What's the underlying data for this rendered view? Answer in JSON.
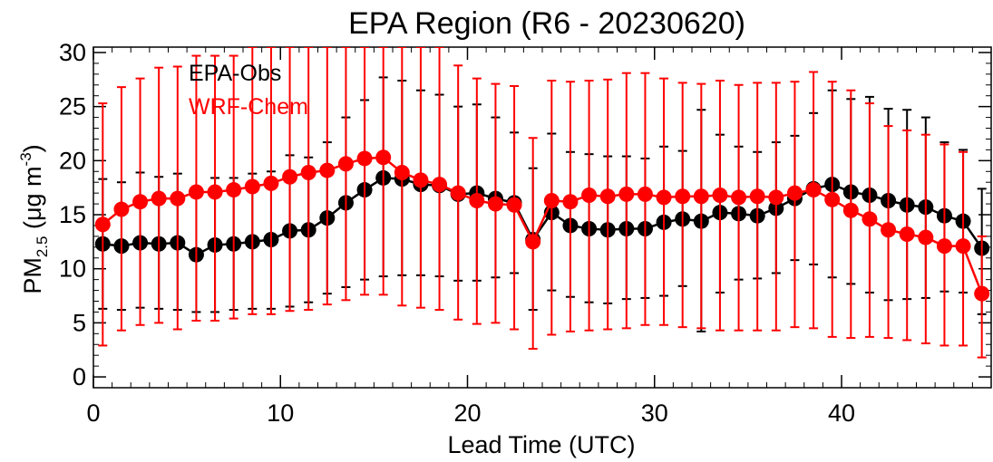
{
  "chart_data": {
    "type": "line",
    "title": "EPA Region (R6 - 20230620)",
    "xlabel": "Lead Time (UTC)",
    "ylabel": {
      "base": "PM",
      "sub": "2.5",
      "unit_pre": " (μg m",
      "unit_sup": "-3",
      "unit_post": ")"
    },
    "xlim": [
      0,
      48
    ],
    "ylim": [
      -1,
      30.5
    ],
    "xticks": [
      0,
      10,
      20,
      30,
      40
    ],
    "yticks": [
      0,
      5,
      10,
      15,
      20,
      25,
      30
    ],
    "legend_position": "top-left",
    "x": [
      0.5,
      1.5,
      2.5,
      3.5,
      4.5,
      5.5,
      6.5,
      7.5,
      8.5,
      9.5,
      10.5,
      11.5,
      12.5,
      13.5,
      14.5,
      15.5,
      16.5,
      17.5,
      18.5,
      19.5,
      20.5,
      21.5,
      22.5,
      23.5,
      24.5,
      25.5,
      26.5,
      27.5,
      28.5,
      29.5,
      30.5,
      31.5,
      32.5,
      33.5,
      34.5,
      35.5,
      36.5,
      37.5,
      38.5,
      39.5,
      40.5,
      41.5,
      42.5,
      43.5,
      44.5,
      45.5,
      46.5,
      47.5
    ],
    "series": [
      {
        "name": "EPA-Obs",
        "color": "#000000",
        "values": [
          12.3,
          12.1,
          12.4,
          12.3,
          12.4,
          11.3,
          12.2,
          12.3,
          12.5,
          12.7,
          13.5,
          13.6,
          14.7,
          16.1,
          17.3,
          18.4,
          18.3,
          17.8,
          17.7,
          16.9,
          17.0,
          16.5,
          16.1,
          12.7,
          15.2,
          14.0,
          13.7,
          13.6,
          13.7,
          13.7,
          14.3,
          14.6,
          14.4,
          15.2,
          15.1,
          14.9,
          15.6,
          16.5,
          17.4,
          17.8,
          17.1,
          16.8,
          16.3,
          15.9,
          15.7,
          14.9,
          14.4,
          11.9
        ],
        "err_low": [
          6.3,
          6.2,
          6.4,
          6.3,
          6.2,
          6.0,
          6.0,
          6.2,
          6.3,
          6.3,
          6.5,
          6.9,
          7.7,
          8.3,
          9.0,
          9.3,
          9.4,
          9.4,
          9.3,
          8.9,
          8.9,
          9.2,
          9.6,
          6.2,
          8.0,
          7.4,
          6.9,
          6.8,
          7.2,
          7.3,
          7.5,
          8.4,
          4.2,
          7.8,
          9.0,
          9.1,
          9.6,
          10.8,
          10.4,
          9.2,
          8.6,
          7.8,
          7.1,
          7.2,
          7.3,
          7.9,
          7.8,
          5.8
        ],
        "err_high": [
          18.3,
          18.0,
          18.9,
          18.5,
          18.8,
          16.6,
          18.4,
          18.4,
          18.8,
          19.0,
          20.5,
          20.3,
          21.7,
          24.0,
          25.6,
          27.7,
          27.4,
          26.5,
          26.1,
          25.0,
          25.2,
          24.0,
          22.6,
          19.3,
          22.5,
          20.8,
          20.6,
          20.4,
          20.4,
          20.2,
          21.3,
          20.9,
          24.7,
          22.4,
          21.3,
          20.8,
          21.7,
          22.3,
          24.4,
          26.5,
          25.7,
          25.9,
          24.8,
          24.7,
          24.0,
          21.7,
          21.0,
          17.4
        ]
      },
      {
        "name": "WRF-Chem",
        "color": "#ff0000",
        "values": [
          14.1,
          15.5,
          16.2,
          16.5,
          16.5,
          17.1,
          17.1,
          17.3,
          17.6,
          17.9,
          18.5,
          18.9,
          19.1,
          19.7,
          20.2,
          20.3,
          18.9,
          18.2,
          17.8,
          17.0,
          16.3,
          16.0,
          15.9,
          12.5,
          16.3,
          16.2,
          16.8,
          16.7,
          16.9,
          16.9,
          16.6,
          16.7,
          16.7,
          16.8,
          16.6,
          16.7,
          16.6,
          17.0,
          17.3,
          16.4,
          15.4,
          14.6,
          13.6,
          13.2,
          12.9,
          12.1,
          12.1,
          7.7
        ],
        "err_low": [
          2.9,
          4.3,
          4.8,
          5.0,
          4.4,
          5.2,
          5.2,
          5.4,
          5.8,
          5.8,
          6.1,
          6.2,
          6.7,
          7.1,
          7.6,
          7.6,
          6.6,
          6.4,
          6.2,
          5.3,
          4.9,
          5.0,
          4.4,
          2.6,
          3.9,
          4.2,
          4.3,
          4.4,
          4.5,
          4.8,
          4.8,
          4.6,
          4.5,
          4.3,
          4.3,
          4.3,
          4.3,
          4.6,
          4.5,
          3.7,
          3.6,
          3.7,
          3.6,
          3.4,
          3.1,
          2.9,
          2.9,
          1.8
        ],
        "err_high": [
          25.3,
          26.8,
          27.6,
          28.6,
          28.7,
          29.7,
          29.7,
          29.7,
          30.5,
          30.5,
          30.5,
          30.5,
          30.5,
          30.5,
          30.5,
          30.5,
          30.5,
          30.5,
          30.5,
          28.8,
          27.6,
          27.1,
          26.9,
          22.1,
          27.4,
          27.3,
          27.4,
          27.5,
          28.1,
          28.1,
          27.6,
          27.2,
          27.1,
          27.4,
          27.0,
          27.2,
          27.2,
          27.3,
          28.2,
          27.3,
          26.5,
          25.3,
          23.2,
          22.8,
          22.4,
          21.5,
          20.8,
          13.0
        ]
      }
    ]
  }
}
